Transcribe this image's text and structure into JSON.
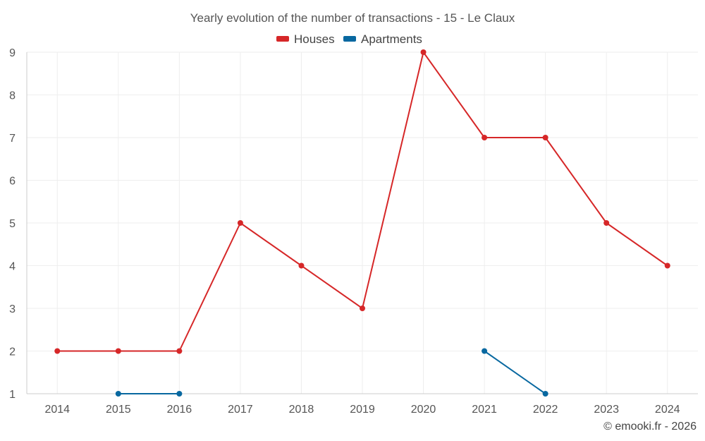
{
  "chart_data": {
    "type": "line",
    "title": "Yearly evolution of the number of transactions - 15 - Le Claux",
    "categories": [
      "2014",
      "2015",
      "2016",
      "2017",
      "2018",
      "2019",
      "2020",
      "2021",
      "2022",
      "2023",
      "2024"
    ],
    "series": [
      {
        "name": "Houses",
        "color": "#d62728",
        "values": [
          2,
          2,
          2,
          5,
          4,
          3,
          9,
          7,
          7,
          5,
          4
        ]
      },
      {
        "name": "Apartments",
        "color": "#0868a0",
        "values": [
          null,
          1,
          1,
          null,
          null,
          null,
          null,
          2,
          1,
          null,
          null
        ]
      }
    ],
    "y_ticks": [
      1,
      2,
      3,
      4,
      5,
      6,
      7,
      8,
      9
    ],
    "ylim": [
      1,
      9
    ],
    "xlabel": "",
    "ylabel": "",
    "grid": true,
    "legend_position": "top-center"
  },
  "credit": "© emooki.fr - 2026"
}
